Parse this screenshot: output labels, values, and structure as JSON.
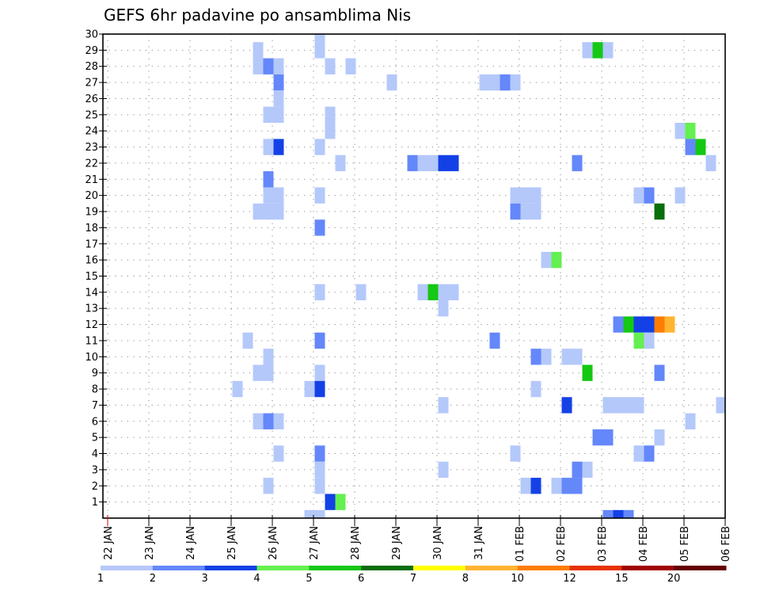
{
  "chart_data": {
    "type": "heatmap",
    "title": "GEFS 6hr padavine po ansamblima Nis",
    "xlabel": "",
    "ylabel": "",
    "x_unit": "hours since 22 JAN 00Z (6-hour steps)",
    "x_ticks": [
      "22 JAN",
      "23 JAN",
      "24 JAN",
      "25 JAN",
      "26 JAN",
      "27 JAN",
      "28 JAN",
      "29 JAN",
      "30 JAN",
      "31 JAN",
      "01 FEB",
      "02 FEB",
      "03 FEB",
      "04 FEB",
      "05 FEB",
      "06 FEB"
    ],
    "xlim_hours": [
      0,
      360
    ],
    "y_ticks": [
      "1",
      "2",
      "3",
      "4",
      "5",
      "6",
      "7",
      "8",
      "9",
      "10",
      "11",
      "12",
      "13",
      "14",
      "15",
      "16",
      "17",
      "18",
      "19",
      "20",
      "21",
      "22",
      "23",
      "24",
      "25",
      "26",
      "27",
      "28",
      "29",
      "30"
    ],
    "ylim": [
      0,
      30
    ],
    "grid": true,
    "legend": {
      "placement": "bottom",
      "levels": [
        "1",
        "2",
        "3",
        "4",
        "5",
        "6",
        "7",
        "8",
        "10",
        "12",
        "15",
        "20"
      ],
      "colors": [
        "#b4c8fa",
        "#6487fa",
        "#1441e6",
        "#64f050",
        "#14c814",
        "#0a6e0a",
        "#ffff00",
        "#ffb432",
        "#ff7d00",
        "#e63200",
        "#a00000",
        "#640000"
      ]
    },
    "thresholds": [
      1,
      2,
      3,
      4,
      5,
      6,
      7,
      8,
      10,
      12,
      15,
      20
    ],
    "cells_columns": [
      "hour",
      "member",
      "value_mm"
    ],
    "cells": [
      [
        72,
        8,
        1.5
      ],
      [
        78,
        11,
        1.5
      ],
      [
        84,
        29,
        1.5
      ],
      [
        84,
        28,
        1.5
      ],
      [
        84,
        19,
        1.5
      ],
      [
        84,
        9,
        1.5
      ],
      [
        84,
        6,
        1.5
      ],
      [
        90,
        28,
        2.5
      ],
      [
        90,
        25,
        1.5
      ],
      [
        90,
        23,
        1.5
      ],
      [
        90,
        21,
        2.5
      ],
      [
        90,
        20,
        1.5
      ],
      [
        90,
        19,
        1.5
      ],
      [
        90,
        10,
        1.5
      ],
      [
        90,
        9,
        1.5
      ],
      [
        90,
        6,
        2.5
      ],
      [
        90,
        2,
        1.5
      ],
      [
        96,
        28,
        1.5
      ],
      [
        96,
        27,
        2.5
      ],
      [
        96,
        26,
        1.5
      ],
      [
        96,
        25,
        1.5
      ],
      [
        96,
        23,
        3.5
      ],
      [
        96,
        20,
        1.5
      ],
      [
        96,
        19,
        1.5
      ],
      [
        96,
        6,
        1.5
      ],
      [
        96,
        4,
        1.5
      ],
      [
        114,
        8,
        1.5
      ],
      [
        114,
        0,
        1.5
      ],
      [
        120,
        30,
        1.5
      ],
      [
        120,
        29,
        1.5
      ],
      [
        120,
        23,
        1.5
      ],
      [
        120,
        20,
        1.5
      ],
      [
        120,
        18,
        2.5
      ],
      [
        120,
        14,
        1.5
      ],
      [
        120,
        11,
        2.5
      ],
      [
        120,
        9,
        1.5
      ],
      [
        120,
        8,
        3.5
      ],
      [
        120,
        4,
        2.5
      ],
      [
        120,
        3,
        1.5
      ],
      [
        120,
        2,
        1.5
      ],
      [
        120,
        0,
        1.5
      ],
      [
        126,
        28,
        1.5
      ],
      [
        126,
        25,
        1.5
      ],
      [
        126,
        24,
        1.5
      ],
      [
        126,
        1,
        3.5
      ],
      [
        132,
        22,
        1.5
      ],
      [
        132,
        1,
        4.5
      ],
      [
        138,
        28,
        1.5
      ],
      [
        144,
        14,
        1.5
      ],
      [
        162,
        27,
        1.5
      ],
      [
        174,
        22,
        2.5
      ],
      [
        180,
        22,
        1.5
      ],
      [
        180,
        14,
        1.5
      ],
      [
        186,
        22,
        1.5
      ],
      [
        186,
        14,
        5.5
      ],
      [
        192,
        22,
        3.5
      ],
      [
        192,
        14,
        1.5
      ],
      [
        192,
        13,
        1.5
      ],
      [
        192,
        7,
        1.5
      ],
      [
        192,
        3,
        1.5
      ],
      [
        198,
        22,
        3.5
      ],
      [
        198,
        14,
        1.5
      ],
      [
        216,
        27,
        1.5
      ],
      [
        222,
        27,
        1.5
      ],
      [
        222,
        11,
        2.5
      ],
      [
        228,
        27,
        2.5
      ],
      [
        234,
        27,
        1.5
      ],
      [
        234,
        20,
        1.5
      ],
      [
        234,
        19,
        2.5
      ],
      [
        234,
        4,
        1.5
      ],
      [
        240,
        20,
        1.5
      ],
      [
        240,
        19,
        1.5
      ],
      [
        240,
        2,
        1.5
      ],
      [
        246,
        20,
        1.5
      ],
      [
        246,
        19,
        1.5
      ],
      [
        246,
        10,
        2.5
      ],
      [
        246,
        8,
        1.5
      ],
      [
        246,
        2,
        3.5
      ],
      [
        252,
        16,
        1.5
      ],
      [
        252,
        10,
        1.5
      ],
      [
        258,
        16,
        4.5
      ],
      [
        258,
        2,
        1.5
      ],
      [
        264,
        10,
        1.5
      ],
      [
        264,
        7,
        3.5
      ],
      [
        264,
        2,
        2.5
      ],
      [
        270,
        22,
        2.5
      ],
      [
        270,
        10,
        1.5
      ],
      [
        270,
        3,
        2.5
      ],
      [
        270,
        2,
        2.5
      ],
      [
        276,
        29,
        1.5
      ],
      [
        276,
        9,
        5.5
      ],
      [
        276,
        3,
        1.5
      ],
      [
        282,
        29,
        5.5
      ],
      [
        282,
        5,
        2.5
      ],
      [
        288,
        29,
        1.5
      ],
      [
        288,
        7,
        1.5
      ],
      [
        288,
        5,
        2.5
      ],
      [
        288,
        0,
        2.5
      ],
      [
        294,
        12,
        2.5
      ],
      [
        294,
        7,
        1.5
      ],
      [
        294,
        0,
        3.5
      ],
      [
        300,
        12,
        5.5
      ],
      [
        300,
        7,
        1.5
      ],
      [
        300,
        0,
        2.5
      ],
      [
        306,
        20,
        1.5
      ],
      [
        306,
        12,
        3.5
      ],
      [
        306,
        11,
        4.5
      ],
      [
        306,
        7,
        1.5
      ],
      [
        306,
        4,
        1.5
      ],
      [
        312,
        20,
        2.5
      ],
      [
        312,
        12,
        3.5
      ],
      [
        312,
        11,
        1.5
      ],
      [
        312,
        4,
        2.5
      ],
      [
        318,
        19,
        6.5
      ],
      [
        318,
        12,
        11
      ],
      [
        318,
        9,
        2.5
      ],
      [
        318,
        5,
        1.5
      ],
      [
        324,
        12,
        9
      ],
      [
        330,
        24,
        1.5
      ],
      [
        330,
        20,
        1.5
      ],
      [
        336,
        24,
        4.5
      ],
      [
        336,
        23,
        2.5
      ],
      [
        336,
        6,
        1.5
      ],
      [
        342,
        23,
        5.5
      ],
      [
        348,
        22,
        1.5
      ],
      [
        354,
        7,
        1.5
      ]
    ]
  }
}
